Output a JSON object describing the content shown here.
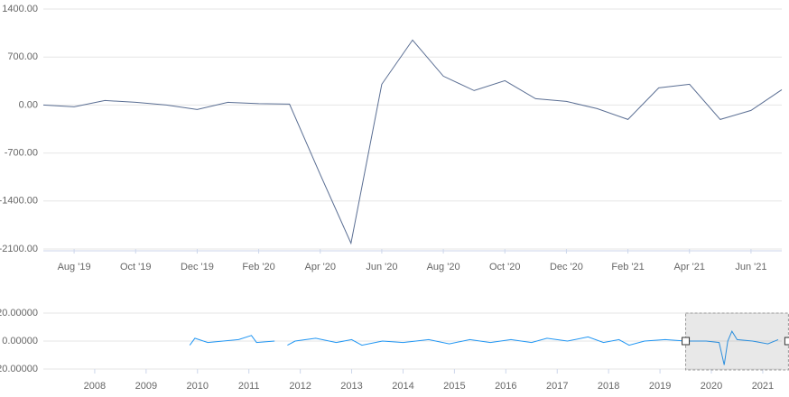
{
  "chart_data": [
    {
      "type": "line",
      "x": [
        "2019-07",
        "2019-08",
        "2019-09",
        "2019-10",
        "2019-11",
        "2019-12",
        "2020-01",
        "2020-02",
        "2020-03",
        "2020-04",
        "2020-05",
        "2020-06",
        "2020-07",
        "2020-08",
        "2020-09",
        "2020-10",
        "2020-11",
        "2020-12",
        "2021-01",
        "2021-02",
        "2021-03",
        "2021-04",
        "2021-05",
        "2021-06",
        "2021-07"
      ],
      "series": [
        {
          "color": "#5a6e93",
          "values": [
            0,
            -26,
            66,
            40,
            0,
            -66,
            40,
            20,
            13,
            -1016,
            -2016,
            303,
            948,
            421,
            211,
            355,
            92,
            53,
            -53,
            -211,
            250,
            303,
            -211,
            -79,
            224
          ]
        }
      ],
      "xlim": [
        "2019-07",
        "2021-07"
      ],
      "xticks": [
        {
          "value": "2019-08",
          "label": "Aug '19"
        },
        {
          "value": "2019-10",
          "label": "Oct '19"
        },
        {
          "value": "2019-12",
          "label": "Dec '19"
        },
        {
          "value": "2020-02",
          "label": "Feb '20"
        },
        {
          "value": "2020-04",
          "label": "Apr '20"
        },
        {
          "value": "2020-06",
          "label": "Jun '20"
        },
        {
          "value": "2020-08",
          "label": "Aug '20"
        },
        {
          "value": "2020-10",
          "label": "Oct '20"
        },
        {
          "value": "2020-12",
          "label": "Dec '20"
        },
        {
          "value": "2021-02",
          "label": "Feb '21"
        },
        {
          "value": "2021-04",
          "label": "Apr '21"
        },
        {
          "value": "2021-06",
          "label": "Jun '21"
        }
      ],
      "ylim": [
        -2100,
        1400
      ],
      "yticks": [
        {
          "value": 1400,
          "label": "1400.00"
        },
        {
          "value": 700,
          "label": "700.00"
        },
        {
          "value": 0,
          "label": "0.00"
        },
        {
          "value": -700,
          "label": "-700.00"
        },
        {
          "value": -1400,
          "label": "-1400.00"
        },
        {
          "value": -2100,
          "label": "-2100.00"
        }
      ],
      "grid": true
    },
    {
      "type": "navigator",
      "x": [
        2009.85,
        2009.95,
        2010.2,
        2010.5,
        2010.8,
        2011.05,
        2011.15,
        2011.5,
        2011.6,
        2011.75,
        2011.9,
        2012.3,
        2012.7,
        2013.0,
        2013.2,
        2013.6,
        2014.0,
        2014.5,
        2014.9,
        2015.3,
        2015.7,
        2016.1,
        2016.5,
        2016.8,
        2017.2,
        2017.6,
        2017.9,
        2018.2,
        2018.4,
        2018.7,
        2019.1,
        2019.5,
        2019.9,
        2020.15,
        2020.25,
        2020.32,
        2020.4,
        2020.5,
        2020.8,
        2021.1,
        2021.3
      ],
      "series": [
        {
          "color": "#2196f3",
          "values": [
            -3,
            2,
            -1,
            0,
            1,
            4,
            -1,
            0,
            null,
            -3,
            0,
            2,
            -1,
            1,
            -3,
            0,
            -1,
            1,
            -2,
            1,
            -1,
            1,
            -1,
            2,
            0,
            3,
            -1,
            1,
            -3,
            0,
            1,
            0,
            0,
            -1,
            -17,
            0,
            7,
            1,
            0,
            -2,
            1
          ]
        }
      ],
      "xlim": [
        2007,
        2021.37
      ],
      "xticks": [
        2008,
        2009,
        2010,
        2011,
        2012,
        2013,
        2014,
        2015,
        2016,
        2017,
        2018,
        2019,
        2020,
        2021
      ],
      "ylim": [
        -20,
        20
      ],
      "yticks": [
        {
          "value": 20,
          "label": "20.00000"
        },
        {
          "value": 0,
          "label": "0.00000"
        },
        {
          "value": -20,
          "label": "-20.00000"
        }
      ],
      "grid": true
    }
  ]
}
